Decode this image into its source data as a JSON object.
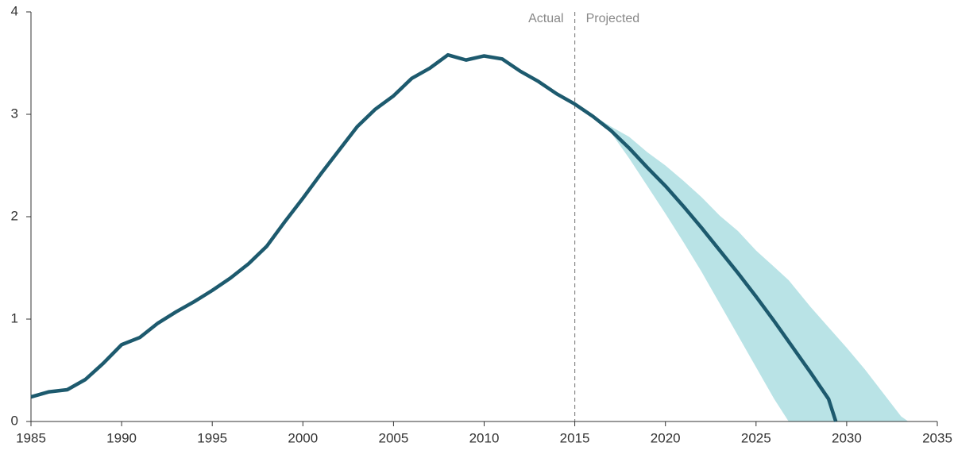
{
  "chart_data": {
    "type": "line",
    "x": [
      1985,
      1986,
      1987,
      1988,
      1989,
      1990,
      1991,
      1992,
      1993,
      1994,
      1995,
      1996,
      1997,
      1998,
      1999,
      2000,
      2001,
      2002,
      2003,
      2004,
      2005,
      2006,
      2007,
      2008,
      2009,
      2010,
      2011,
      2012,
      2013,
      2014,
      2015,
      2016,
      2017,
      2018,
      2019,
      2020,
      2021,
      2022,
      2023,
      2024,
      2025,
      2026,
      2027,
      2028,
      2029,
      2029.4
    ],
    "series": [
      {
        "color": "#1d5a6e",
        "values": [
          0.24,
          0.29,
          0.31,
          0.41,
          0.57,
          0.75,
          0.82,
          0.96,
          1.07,
          1.17,
          1.28,
          1.4,
          1.54,
          1.71,
          1.95,
          2.18,
          2.42,
          2.65,
          2.88,
          3.05,
          3.18,
          3.35,
          3.45,
          3.58,
          3.53,
          3.57,
          3.54,
          3.42,
          3.32,
          3.2,
          3.1,
          2.98,
          2.84,
          2.67,
          2.48,
          2.3,
          2.1,
          1.89,
          1.67,
          1.45,
          1.22,
          0.98,
          0.73,
          0.48,
          0.22,
          0
        ]
      }
    ],
    "band": {
      "color": "#b9e3e6",
      "x": [
        2016,
        2017,
        2018,
        2019,
        2020,
        2021,
        2022,
        2023,
        2024,
        2025,
        2026,
        2026.8,
        2028,
        2029,
        2030,
        2031,
        2032,
        2033,
        2033.4
      ],
      "upper": [
        2.99,
        2.88,
        2.78,
        2.63,
        2.5,
        2.35,
        2.19,
        2.01,
        1.86,
        1.67,
        1.51,
        1.38,
        1.12,
        0.92,
        0.72,
        0.51,
        0.28,
        0.05,
        0
      ],
      "lower": [
        2.99,
        2.82,
        2.57,
        2.3,
        2.03,
        1.75,
        1.46,
        1.15,
        0.84,
        0.53,
        0.22,
        0,
        0,
        0,
        0,
        0,
        0,
        0,
        0
      ]
    },
    "divider_x": 2015,
    "annotations": [
      "Actual",
      "Projected"
    ],
    "xlim": [
      1985,
      2035
    ],
    "xticks": [
      1985,
      1990,
      1995,
      2000,
      2005,
      2010,
      2015,
      2020,
      2025,
      2030,
      2035
    ],
    "ylim": [
      0,
      4
    ],
    "yticks": [
      0,
      1,
      2,
      3,
      4
    ],
    "grid": false
  }
}
